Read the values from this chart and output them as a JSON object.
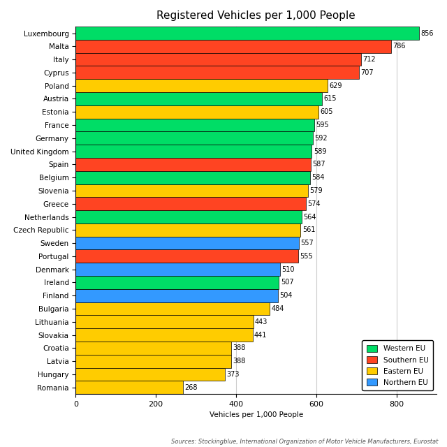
{
  "title": "Registered Vehicles per 1,000 People",
  "xlabel": "Vehicles per 1,000 People",
  "source_text": "Sources: Stockingblue, International Organization of Motor Vehicle Manufacturers, Eurostat",
  "countries": [
    "Luxembourg",
    "Malta",
    "Italy",
    "Cyprus",
    "Poland",
    "Austria",
    "Estonia",
    "France",
    "Germany",
    "United Kingdom",
    "Spain",
    "Belgium",
    "Slovenia",
    "Greece",
    "Netherlands",
    "Czech Republic",
    "Sweden",
    "Portugal",
    "Denmark",
    "Ireland",
    "Finland",
    "Bulgaria",
    "Lithuania",
    "Slovakia",
    "Croatia",
    "Latvia",
    "Hungary",
    "Romania"
  ],
  "values": [
    856,
    786,
    712,
    707,
    629,
    615,
    605,
    595,
    592,
    589,
    587,
    584,
    579,
    574,
    564,
    561,
    557,
    555,
    510,
    507,
    504,
    484,
    443,
    441,
    388,
    388,
    373,
    268
  ],
  "regions": [
    "Western EU",
    "Southern EU",
    "Southern EU",
    "Southern EU",
    "Eastern EU",
    "Western EU",
    "Eastern EU",
    "Western EU",
    "Western EU",
    "Western EU",
    "Southern EU",
    "Western EU",
    "Eastern EU",
    "Southern EU",
    "Western EU",
    "Eastern EU",
    "Northern EU",
    "Southern EU",
    "Northern EU",
    "Western EU",
    "Northern EU",
    "Eastern EU",
    "Eastern EU",
    "Eastern EU",
    "Eastern EU",
    "Eastern EU",
    "Eastern EU",
    "Eastern EU"
  ],
  "region_colors": {
    "Western EU": "#00DD66",
    "Southern EU": "#FF4422",
    "Eastern EU": "#FFCC00",
    "Northern EU": "#3399FF"
  },
  "legend_order": [
    "Western EU",
    "Southern EU",
    "Eastern EU",
    "Northern EU"
  ],
  "xlim": [
    0,
    900
  ],
  "xticks": [
    0,
    200,
    400,
    600,
    800
  ],
  "bar_edgecolor": "#000000",
  "bar_linewidth": 0.5,
  "grid_color": "#cccccc",
  "bg_color": "#ffffff",
  "title_fontsize": 11,
  "label_fontsize": 7.5,
  "tick_fontsize": 8,
  "value_fontsize": 7,
  "source_fontsize": 6
}
